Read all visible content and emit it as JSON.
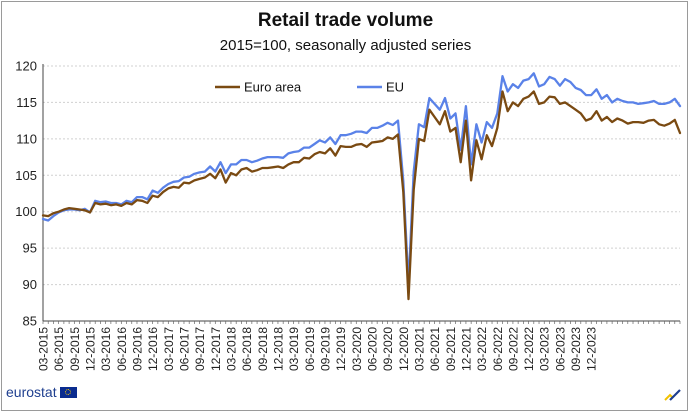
{
  "brand": {
    "name": "eurostat"
  },
  "chart_data": {
    "type": "line",
    "title": "Retail trade volume",
    "subtitle": "2015=100, seasonally adjusted series",
    "xlabel": "",
    "ylabel": "",
    "ylim": [
      85,
      120
    ],
    "yticks": [
      85,
      90,
      95,
      100,
      105,
      110,
      115,
      120
    ],
    "grid": "horizontal",
    "legend_position": "top-left",
    "x_start": "03-2015",
    "tick_labels": [
      "03-2015",
      "06-2015",
      "09-2015",
      "12-2015",
      "03-2016",
      "06-2016",
      "09-2016",
      "12-2016",
      "03-2017",
      "06-2017",
      "09-2017",
      "12-2017",
      "03-2018",
      "06-2018",
      "09-2018",
      "12-2018",
      "03-2019",
      "06-2019",
      "09-2019",
      "12-2019",
      "03-2020",
      "06-2020",
      "09-2020",
      "12-2020",
      "03-2021",
      "06-2021",
      "09-2021",
      "12-2021",
      "03-2022",
      "06-2022",
      "09-2022",
      "12-2022",
      "03-2023",
      "06-2023",
      "09-2023",
      "12-2023"
    ],
    "series": [
      {
        "name": "Euro area",
        "color": "#7a4a12",
        "values": [
          99.5,
          99.4,
          99.8,
          100.0,
          100.3,
          100.5,
          100.4,
          100.3,
          100.2,
          99.9,
          101.2,
          101.0,
          101.1,
          100.9,
          101.0,
          100.8,
          101.2,
          101.0,
          101.6,
          101.5,
          101.2,
          102.2,
          102.0,
          102.7,
          103.2,
          103.4,
          103.3,
          104.0,
          103.9,
          104.3,
          104.5,
          104.7,
          105.2,
          104.6,
          105.8,
          104.0,
          105.3,
          105.0,
          105.8,
          106.0,
          105.5,
          105.7,
          106.0,
          106.0,
          106.1,
          106.2,
          106.0,
          106.5,
          106.8,
          106.8,
          107.4,
          107.3,
          107.9,
          108.2,
          108.0,
          108.7,
          107.7,
          109.0,
          108.9,
          108.9,
          109.2,
          109.3,
          108.9,
          109.5,
          109.6,
          109.7,
          110.2,
          110.0,
          110.6,
          102.7,
          88.0,
          103.0,
          110.0,
          109.7,
          114.0,
          113.0,
          112.0,
          113.8,
          111.0,
          111.5,
          106.8,
          112.5,
          104.3,
          109.8,
          107.2,
          110.5,
          109.0,
          111.5,
          116.5,
          113.8,
          115.0,
          114.5,
          115.5,
          115.8,
          116.5,
          114.8,
          115.0,
          115.8,
          115.7,
          114.8,
          115.0,
          114.5,
          114.0,
          113.5,
          112.5,
          112.8,
          113.8,
          112.5,
          113.0,
          112.3,
          112.8,
          112.5,
          112.1,
          112.3,
          112.3,
          112.2,
          112.5,
          112.6,
          112.0,
          111.8,
          112.1,
          112.6,
          110.8
        ]
      },
      {
        "name": "EU",
        "color": "#5a82e8",
        "values": [
          99.0,
          98.8,
          99.4,
          99.9,
          100.2,
          100.3,
          100.3,
          100.2,
          100.4,
          99.9,
          101.5,
          101.3,
          101.4,
          101.2,
          101.2,
          101.0,
          101.5,
          101.3,
          102.0,
          102.0,
          101.7,
          102.9,
          102.6,
          103.3,
          103.8,
          104.1,
          104.2,
          104.7,
          104.8,
          105.2,
          105.4,
          105.5,
          106.2,
          105.5,
          106.8,
          105.3,
          106.5,
          106.5,
          107.1,
          107.1,
          106.8,
          107.0,
          107.3,
          107.5,
          107.5,
          107.5,
          107.4,
          108.0,
          108.2,
          108.3,
          108.8,
          108.8,
          109.3,
          109.8,
          109.5,
          110.2,
          109.3,
          110.5,
          110.5,
          110.7,
          111.0,
          111.0,
          110.8,
          111.5,
          111.5,
          111.8,
          112.2,
          111.9,
          112.5,
          104.2,
          90.0,
          105.5,
          112.0,
          111.6,
          115.6,
          114.8,
          114.0,
          115.6,
          112.8,
          113.5,
          108.5,
          114.5,
          106.5,
          112.0,
          109.5,
          112.3,
          111.5,
          113.5,
          118.6,
          116.5,
          117.5,
          117.0,
          118.0,
          118.2,
          119.0,
          117.2,
          117.5,
          118.5,
          118.2,
          117.3,
          118.2,
          117.8,
          117.0,
          116.7,
          116.0,
          116.0,
          116.8,
          115.5,
          116.0,
          115.0,
          115.5,
          115.2,
          115.0,
          115.0,
          114.8,
          114.9,
          115.0,
          115.2,
          114.8,
          114.8,
          115.0,
          115.5,
          114.5
        ]
      }
    ]
  }
}
